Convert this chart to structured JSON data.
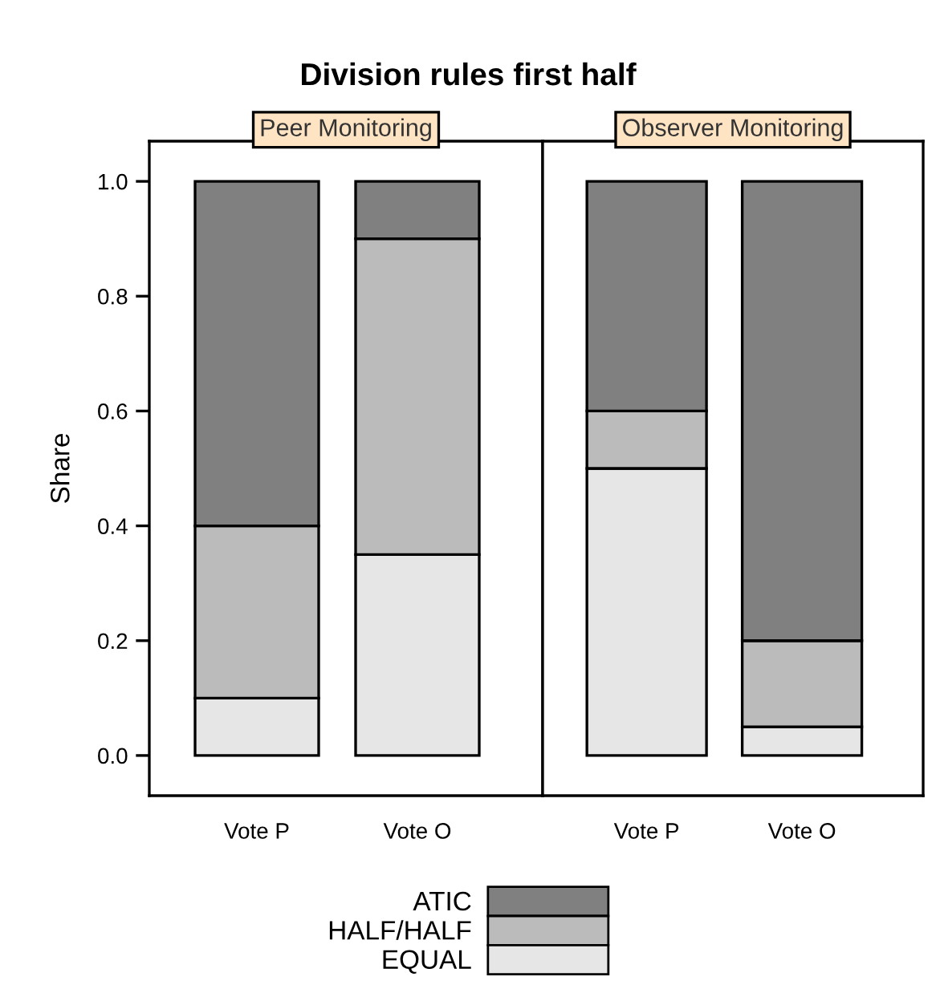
{
  "chart_data": [
    {
      "type": "bar",
      "stacked": true,
      "title": "Division rules first half",
      "subtitle": "Peer Monitoring",
      "ylabel": "Share",
      "categories": [
        "Vote P",
        "Vote O"
      ],
      "ylim": [
        -0.07,
        1.07
      ],
      "yticks": [
        {
          "value": 0,
          "label": "0.0"
        },
        0.2,
        0.4,
        0.6,
        0.8,
        {
          "value": 1,
          "label": "1.0"
        }
      ],
      "legend": "bottom",
      "grid": false,
      "series": [
        {
          "name": "EQUAL",
          "color": "#e6e6e6",
          "values": [
            0.1,
            0.35
          ]
        },
        {
          "name": "HALF/HALF",
          "color": "#bbbbbb",
          "values": [
            0.3,
            0.55
          ]
        },
        {
          "name": "ATIC",
          "color": "#808080",
          "values": [
            0.6,
            0.1
          ]
        }
      ]
    },
    {
      "type": "bar",
      "stacked": true,
      "subtitle": "Observer Monitoring",
      "categories": [
        "Vote P",
        "Vote O"
      ],
      "ylim": [
        -0.07,
        1.07
      ],
      "tick_labels": "x",
      "grid": false,
      "series": [
        {
          "color": "#e6e6e6",
          "values": [
            0.5,
            0.05
          ]
        },
        {
          "color": "#bbbbbb",
          "values": [
            0.1,
            0.15
          ]
        },
        {
          "color": "#808080",
          "values": [
            0.4,
            0.8
          ]
        }
      ]
    }
  ]
}
